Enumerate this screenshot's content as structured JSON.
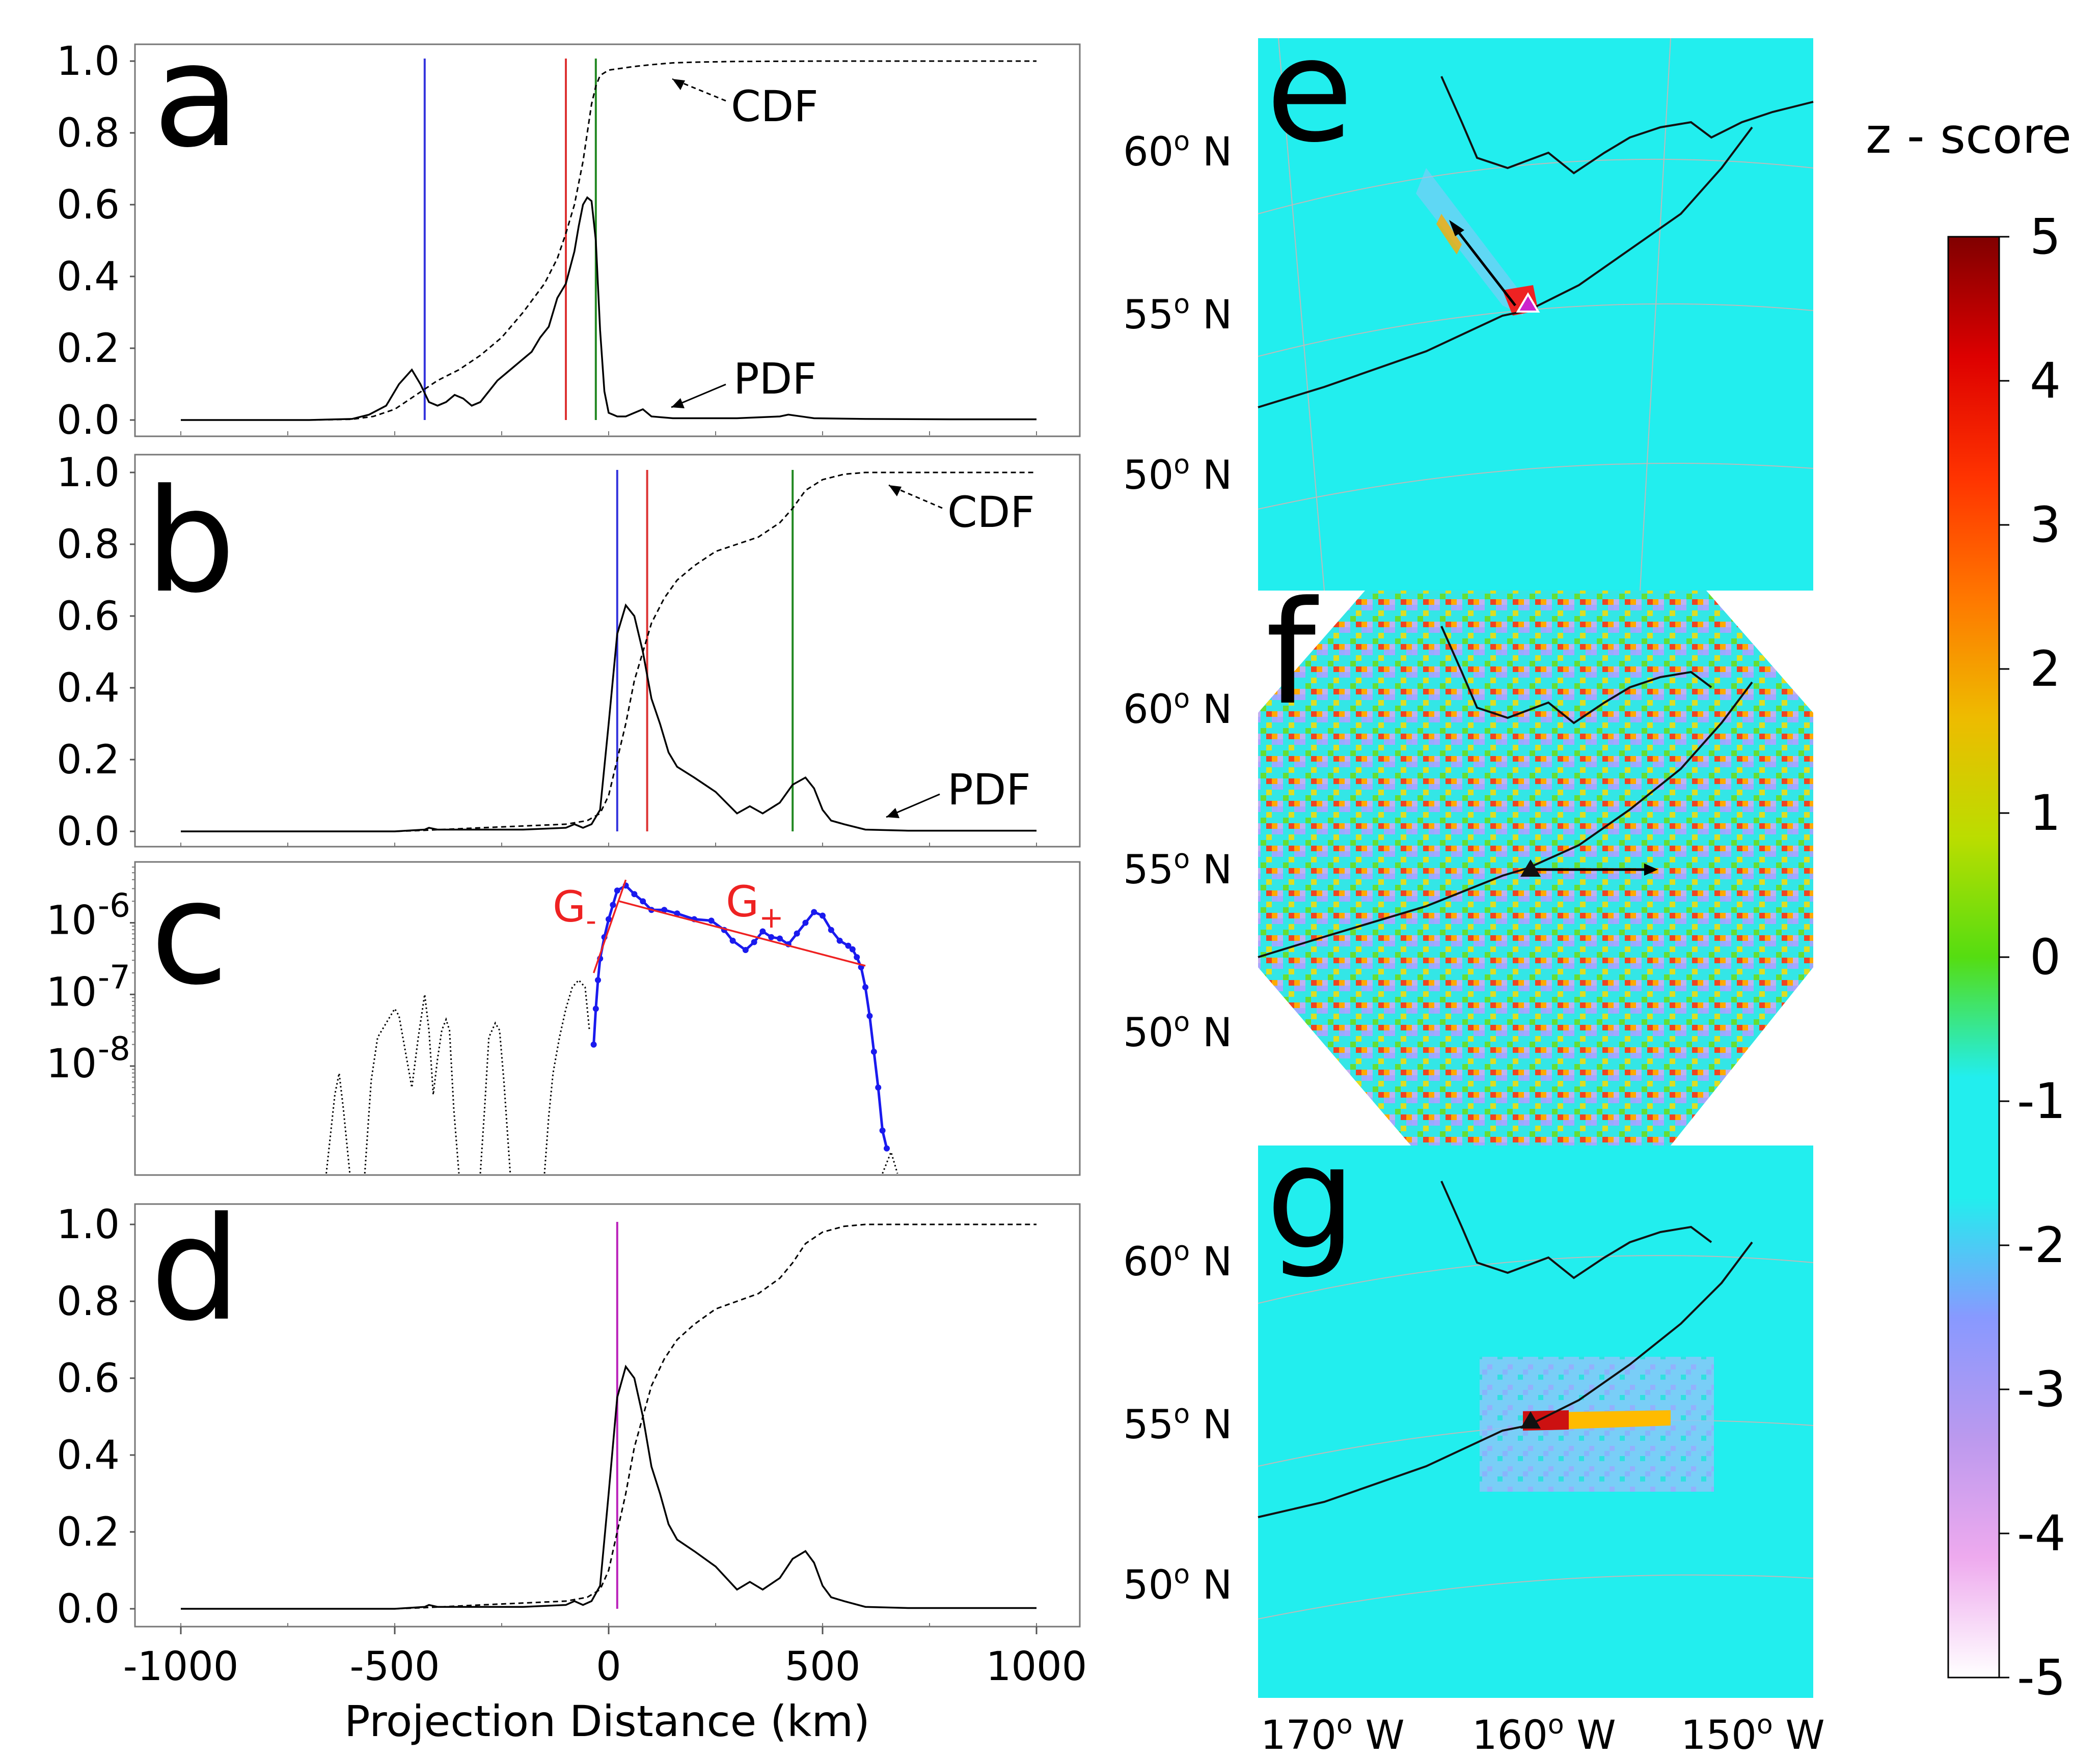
{
  "colors": {
    "vline_blue": "#3333dd",
    "vline_red": "#dd3333",
    "vline_green": "#228822",
    "vline_magenta": "#bb22bb",
    "blue_series": "#1a1aee",
    "fit_red": "#ee2222",
    "map_ocean": "#22eeee",
    "axis": "#555555"
  },
  "chart_data": [
    {
      "panel": "a",
      "type": "line",
      "xlim": [
        -1000,
        1000
      ],
      "ylim": [
        0,
        1.0
      ],
      "yticks": [
        "0.0",
        "0.2",
        "0.4",
        "0.6",
        "0.8",
        "1.0"
      ],
      "series": [
        {
          "name": "PDF",
          "style": "solid",
          "x": [
            -1000,
            -700,
            -600,
            -560,
            -520,
            -490,
            -460,
            -440,
            -420,
            -400,
            -380,
            -360,
            -340,
            -320,
            -300,
            -280,
            -260,
            -240,
            -220,
            -200,
            -180,
            -160,
            -140,
            -120,
            -100,
            -80,
            -70,
            -60,
            -50,
            -40,
            -30,
            -20,
            -10,
            0,
            10,
            20,
            30,
            40,
            60,
            80,
            100,
            150,
            200,
            300,
            400,
            420,
            450,
            480,
            600,
            800,
            1000
          ],
          "y": [
            0,
            0,
            0.003,
            0.015,
            0.04,
            0.1,
            0.14,
            0.1,
            0.05,
            0.04,
            0.05,
            0.07,
            0.06,
            0.04,
            0.05,
            0.08,
            0.11,
            0.13,
            0.15,
            0.17,
            0.19,
            0.23,
            0.26,
            0.34,
            0.38,
            0.47,
            0.54,
            0.6,
            0.62,
            0.61,
            0.5,
            0.25,
            0.08,
            0.02,
            0.015,
            0.01,
            0.01,
            0.01,
            0.02,
            0.03,
            0.01,
            0.005,
            0.005,
            0.005,
            0.01,
            0.015,
            0.01,
            0.005,
            0.003,
            0.002,
            0.002
          ]
        },
        {
          "name": "CDF",
          "style": "dashed",
          "x": [
            -1000,
            -700,
            -600,
            -550,
            -500,
            -450,
            -400,
            -350,
            -300,
            -250,
            -200,
            -150,
            -120,
            -100,
            -80,
            -60,
            -50,
            -40,
            -30,
            -20,
            0,
            30,
            60,
            100,
            150,
            200,
            300,
            500,
            1000
          ],
          "y": [
            0,
            0,
            0.002,
            0.01,
            0.03,
            0.07,
            0.11,
            0.14,
            0.18,
            0.23,
            0.3,
            0.38,
            0.45,
            0.52,
            0.6,
            0.72,
            0.8,
            0.88,
            0.93,
            0.96,
            0.975,
            0.98,
            0.985,
            0.99,
            0.995,
            0.997,
            0.999,
            1.0,
            1.0
          ]
        }
      ],
      "vlines": [
        {
          "x": -430,
          "color": "blue"
        },
        {
          "x": -100,
          "color": "red"
        },
        {
          "x": -30,
          "color": "green"
        }
      ],
      "annotations": [
        {
          "text": "CDF",
          "arrow_style": "dashed"
        },
        {
          "text": "PDF",
          "arrow_style": "solid"
        }
      ],
      "label": "a"
    },
    {
      "panel": "b",
      "type": "line",
      "xlim": [
        -1000,
        1000
      ],
      "ylim": [
        0,
        1.0
      ],
      "yticks": [
        "0.0",
        "0.2",
        "0.4",
        "0.6",
        "0.8",
        "1.0"
      ],
      "series": [
        {
          "name": "PDF",
          "style": "solid",
          "x": [
            -1000,
            -500,
            -430,
            -420,
            -400,
            -200,
            -100,
            -80,
            -60,
            -40,
            -20,
            0,
            20,
            40,
            60,
            80,
            100,
            120,
            140,
            160,
            200,
            250,
            300,
            330,
            360,
            400,
            430,
            460,
            480,
            500,
            520,
            550,
            600,
            700,
            1000
          ],
          "y": [
            0,
            0,
            0.005,
            0.01,
            0.005,
            0.005,
            0.01,
            0.02,
            0.01,
            0.02,
            0.06,
            0.3,
            0.55,
            0.63,
            0.6,
            0.5,
            0.37,
            0.3,
            0.22,
            0.18,
            0.15,
            0.11,
            0.05,
            0.07,
            0.05,
            0.08,
            0.13,
            0.15,
            0.12,
            0.06,
            0.03,
            0.02,
            0.005,
            0.002,
            0.002
          ]
        },
        {
          "name": "CDF",
          "style": "dashed",
          "x": [
            -1000,
            -500,
            -430,
            -300,
            -100,
            -50,
            -20,
            0,
            20,
            40,
            60,
            80,
            100,
            130,
            160,
            200,
            250,
            300,
            350,
            400,
            430,
            460,
            500,
            550,
            600,
            700,
            1000
          ],
          "y": [
            0,
            0,
            0.003,
            0.01,
            0.02,
            0.03,
            0.05,
            0.1,
            0.2,
            0.3,
            0.42,
            0.5,
            0.58,
            0.65,
            0.7,
            0.74,
            0.78,
            0.8,
            0.82,
            0.86,
            0.9,
            0.95,
            0.98,
            0.995,
            1.0,
            1.0,
            1.0
          ]
        }
      ],
      "vlines": [
        {
          "x": 20,
          "color": "blue"
        },
        {
          "x": 90,
          "color": "red"
        },
        {
          "x": 430,
          "color": "green"
        }
      ],
      "annotations": [
        {
          "text": "CDF",
          "arrow_style": "dashed"
        },
        {
          "text": "PDF",
          "arrow_style": "solid"
        }
      ],
      "label": "b"
    },
    {
      "panel": "c",
      "type": "line",
      "yscale": "log",
      "ylim_log10": [
        -9.5,
        -5.2
      ],
      "yticks": [
        {
          "exp": "-6",
          "value": 1e-06
        },
        {
          "exp": "-7",
          "value": 1e-07
        },
        {
          "exp": "-8",
          "value": 1e-08
        }
      ],
      "series": [
        {
          "name": "dotted background",
          "style": "dotted",
          "color": "black",
          "x_log10y": [
            [
              -660,
              -9.5
            ],
            [
              -640,
              -8.4
            ],
            [
              -630,
              -8.1
            ],
            [
              -620,
              -8.6
            ],
            [
              -605,
              -9.5
            ],
            null,
            [
              -570,
              -9.5
            ],
            [
              -555,
              -8.2
            ],
            [
              -540,
              -7.6
            ],
            [
              -520,
              -7.4
            ],
            [
              -500,
              -7.2
            ],
            [
              -490,
              -7.3
            ],
            [
              -475,
              -7.8
            ],
            [
              -460,
              -8.3
            ],
            [
              -445,
              -7.6
            ],
            [
              -430,
              -7.0
            ],
            [
              -420,
              -7.5
            ],
            [
              -410,
              -8.4
            ],
            [
              -400,
              -7.9
            ],
            [
              -390,
              -7.5
            ],
            [
              -380,
              -7.35
            ],
            [
              -372,
              -7.5
            ],
            [
              -362,
              -8.6
            ],
            [
              -350,
              -9.5
            ],
            null,
            [
              -300,
              -9.5
            ],
            [
              -290,
              -8.6
            ],
            [
              -280,
              -7.6
            ],
            [
              -265,
              -7.4
            ],
            [
              -255,
              -7.5
            ],
            [
              -245,
              -8.2
            ],
            [
              -230,
              -9.5
            ],
            null,
            [
              -150,
              -9.5
            ],
            [
              -140,
              -8.7
            ],
            [
              -130,
              -8.1
            ],
            [
              -115,
              -7.6
            ],
            [
              -100,
              -7.2
            ],
            [
              -85,
              -6.9
            ],
            [
              -70,
              -6.8
            ],
            [
              -55,
              -6.9
            ],
            [
              -45,
              -7.5
            ],
            null,
            [
              640,
              -9.5
            ],
            [
              660,
              -9.2
            ],
            [
              675,
              -9.5
            ]
          ]
        },
        {
          "name": "blue PDF log",
          "style": "solid-markers",
          "color": "blue",
          "x_log10y": [
            [
              -35,
              -7.7
            ],
            [
              -30,
              -7.2
            ],
            [
              -25,
              -6.8
            ],
            [
              -20,
              -6.5
            ],
            [
              -10,
              -6.2
            ],
            [
              0,
              -5.95
            ],
            [
              10,
              -5.75
            ],
            [
              20,
              -5.55
            ],
            [
              40,
              -5.48
            ],
            [
              60,
              -5.6
            ],
            [
              80,
              -5.7
            ],
            [
              100,
              -5.82
            ],
            [
              130,
              -5.82
            ],
            [
              160,
              -5.87
            ],
            [
              200,
              -5.95
            ],
            [
              240,
              -5.97
            ],
            [
              270,
              -6.1
            ],
            [
              290,
              -6.25
            ],
            [
              320,
              -6.38
            ],
            [
              340,
              -6.27
            ],
            [
              360,
              -6.12
            ],
            [
              380,
              -6.2
            ],
            [
              400,
              -6.22
            ],
            [
              420,
              -6.3
            ],
            [
              440,
              -6.15
            ],
            [
              460,
              -6.0
            ],
            [
              480,
              -5.85
            ],
            [
              500,
              -5.9
            ],
            [
              520,
              -6.1
            ],
            [
              540,
              -6.25
            ],
            [
              560,
              -6.32
            ],
            [
              570,
              -6.37
            ],
            [
              580,
              -6.48
            ],
            [
              590,
              -6.62
            ],
            [
              600,
              -6.9
            ],
            [
              610,
              -7.3
            ],
            [
              620,
              -7.8
            ],
            [
              630,
              -8.3
            ],
            [
              640,
              -8.9
            ],
            [
              650,
              -9.15
            ]
          ]
        },
        {
          "name": "G-",
          "style": "fit",
          "color": "red",
          "x_log10y": [
            [
              -35,
              -6.7
            ],
            [
              40,
              -5.4
            ]
          ]
        },
        {
          "name": "G+",
          "style": "fit",
          "color": "red",
          "x_log10y": [
            [
              25,
              -5.7
            ],
            [
              600,
              -6.6
            ]
          ]
        }
      ],
      "labels": [
        {
          "base": "G",
          "sub": "-"
        },
        {
          "base": "G",
          "sub": "+"
        }
      ],
      "label": "c"
    },
    {
      "panel": "d",
      "type": "line",
      "xlim": [
        -1000,
        1000
      ],
      "ylim": [
        0,
        1.0
      ],
      "yticks": [
        "0.0",
        "0.2",
        "0.4",
        "0.6",
        "0.8",
        "1.0"
      ],
      "xticks": [
        "-1000",
        "-500",
        "0",
        "500",
        "1000"
      ],
      "xlabel": "Projection Distance (km)",
      "series": [
        {
          "name": "PDF",
          "style": "solid",
          "x": [
            -1000,
            -500,
            -430,
            -420,
            -400,
            -200,
            -100,
            -80,
            -60,
            -40,
            -20,
            0,
            20,
            40,
            60,
            80,
            100,
            120,
            140,
            160,
            200,
            250,
            300,
            330,
            360,
            400,
            430,
            460,
            480,
            500,
            520,
            550,
            600,
            700,
            1000
          ],
          "y": [
            0,
            0,
            0.005,
            0.01,
            0.005,
            0.005,
            0.01,
            0.02,
            0.01,
            0.02,
            0.06,
            0.3,
            0.55,
            0.63,
            0.6,
            0.5,
            0.37,
            0.3,
            0.22,
            0.18,
            0.15,
            0.11,
            0.05,
            0.07,
            0.05,
            0.08,
            0.13,
            0.15,
            0.12,
            0.06,
            0.03,
            0.02,
            0.005,
            0.002,
            0.002
          ]
        },
        {
          "name": "CDF",
          "style": "dashed",
          "x": [
            -1000,
            -500,
            -430,
            -300,
            -100,
            -50,
            -20,
            0,
            20,
            40,
            60,
            80,
            100,
            130,
            160,
            200,
            250,
            300,
            350,
            400,
            430,
            460,
            500,
            550,
            600,
            700,
            1000
          ],
          "y": [
            0,
            0,
            0.003,
            0.01,
            0.02,
            0.03,
            0.05,
            0.1,
            0.2,
            0.3,
            0.42,
            0.5,
            0.58,
            0.65,
            0.7,
            0.74,
            0.78,
            0.8,
            0.82,
            0.86,
            0.9,
            0.95,
            0.98,
            0.995,
            1.0,
            1.0,
            1.0
          ]
        }
      ],
      "vlines": [
        {
          "x": 20,
          "color": "magenta"
        }
      ],
      "label": "d"
    }
  ],
  "maps": {
    "lat_labels": [
      "60",
      "55",
      "50"
    ],
    "lat_suffix": " N",
    "lon_labels": [
      "170",
      "160",
      "150"
    ],
    "lon_suffix": " W",
    "degree_mark": "o",
    "panels": [
      "e",
      "f",
      "g"
    ]
  },
  "colorbar": {
    "title": "z - score",
    "ticks": [
      "5",
      "4",
      "3",
      "2",
      "1",
      "0",
      "-1",
      "-2",
      "-3",
      "-4",
      "-5"
    ],
    "range": [
      -5,
      5
    ],
    "stops": [
      "#800000",
      "#dd0000",
      "#ff3300",
      "#ff7700",
      "#eebb00",
      "#bbdd00",
      "#55dd11",
      "#22eeee",
      "#22eeee",
      "#8899ff",
      "#bb99ee",
      "#eeaaee",
      "#ffffff"
    ]
  }
}
